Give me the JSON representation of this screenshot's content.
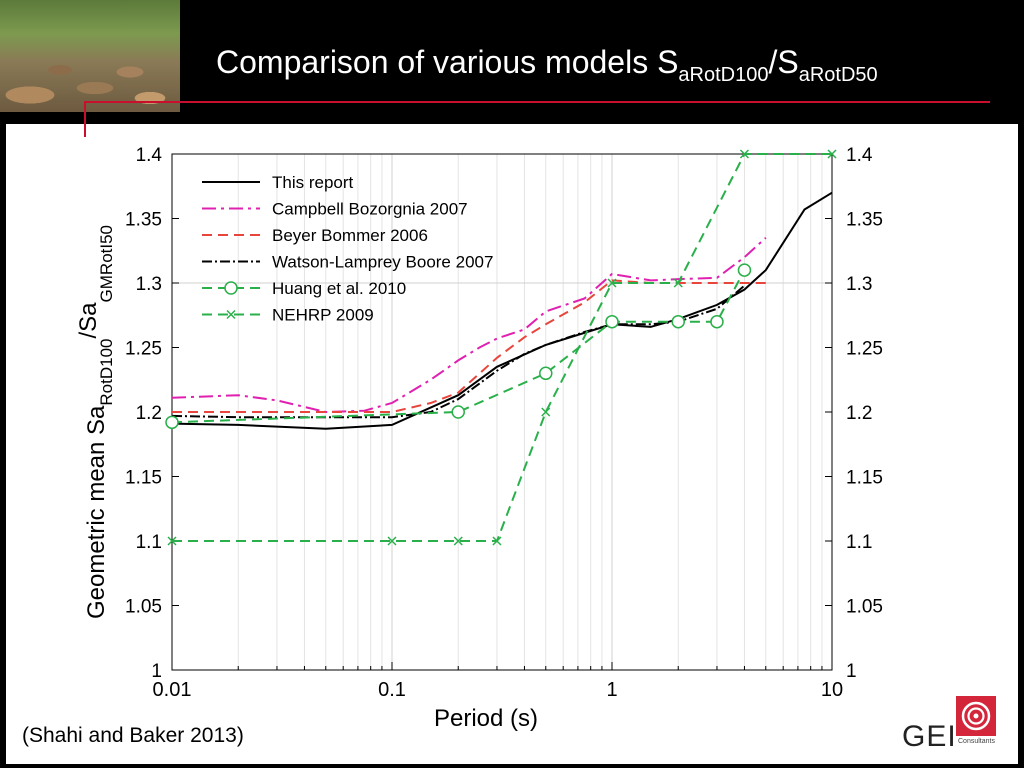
{
  "slide": {
    "title_main": "Comparison of various models S",
    "title_sub1": "aRotD100",
    "title_mid": "/S",
    "title_sub2": "aRotD50",
    "citation": "(Shahi and Baker 2013)",
    "logo_text": "GEI",
    "logo_sub": "Consultants"
  },
  "colors": {
    "accent_red": "#c8102e",
    "header_bg": "#000000"
  },
  "chart_data": {
    "type": "line",
    "xscale": "log",
    "xlim": [
      0.01,
      10
    ],
    "ylim": [
      1,
      1.4
    ],
    "xticks": [
      0.01,
      0.1,
      1,
      10
    ],
    "xticklabels": [
      "0.01",
      "0.1",
      "1",
      "10"
    ],
    "yticks": [
      1,
      1.05,
      1.1,
      1.15,
      1.2,
      1.25,
      1.3,
      1.35,
      1.4
    ],
    "yticklabels": [
      "1",
      "1.05",
      "1.1",
      "1.15",
      "1.2",
      "1.25",
      "1.3",
      "1.35",
      "1.4"
    ],
    "xlabel": "Period (s)",
    "ylabel_main": "Geometric mean Sa",
    "ylabel_sub1": "RotD100",
    "ylabel_mid": "/Sa",
    "ylabel_sub2": "GMRotI50",
    "grid": "vertical lines at decades and horizontal at 1.3",
    "legend_position": "top-left",
    "series": [
      {
        "name": "This report",
        "color": "#000000",
        "dash": "",
        "marker": "none",
        "x": [
          0.01,
          0.02,
          0.05,
          0.1,
          0.2,
          0.3,
          0.5,
          1,
          1.5,
          2,
          3,
          4,
          5,
          7.5,
          10
        ],
        "y": [
          1.191,
          1.19,
          1.187,
          1.19,
          1.213,
          1.235,
          1.252,
          1.268,
          1.266,
          1.272,
          1.283,
          1.295,
          1.31,
          1.357,
          1.37
        ]
      },
      {
        "name": "Campbell Bozorgnia 2007",
        "color": "#e020b0",
        "dash": "14,5,3,5",
        "marker": "none",
        "x": [
          0.01,
          0.02,
          0.03,
          0.05,
          0.075,
          0.1,
          0.15,
          0.2,
          0.25,
          0.3,
          0.4,
          0.5,
          0.75,
          1,
          1.5,
          2,
          3,
          4,
          5
        ],
        "y": [
          1.211,
          1.213,
          1.209,
          1.2,
          1.201,
          1.207,
          1.225,
          1.24,
          1.25,
          1.257,
          1.264,
          1.278,
          1.288,
          1.307,
          1.302,
          1.303,
          1.304,
          1.32,
          1.335
        ]
      },
      {
        "name": "Beyer Bommer 2006",
        "color": "#e8453c",
        "dash": "10,6",
        "marker": "none",
        "x": [
          0.01,
          0.02,
          0.05,
          0.1,
          0.15,
          0.2,
          0.3,
          0.4,
          0.5,
          0.75,
          1,
          1.5,
          2,
          3,
          4,
          5
        ],
        "y": [
          1.2,
          1.2,
          1.2,
          1.2,
          1.207,
          1.215,
          1.242,
          1.258,
          1.268,
          1.285,
          1.302,
          1.3,
          1.3,
          1.3,
          1.3,
          1.3
        ]
      },
      {
        "name": "Watson-Lamprey Boore 2007",
        "color": "#000000",
        "dash": "10,3,2,3",
        "marker": "none",
        "x": [
          0.01,
          0.02,
          0.05,
          0.1,
          0.15,
          0.2,
          0.3,
          0.4,
          0.5,
          0.75,
          1,
          1.5,
          2,
          3,
          4
        ],
        "y": [
          1.197,
          1.196,
          1.196,
          1.196,
          1.2,
          1.21,
          1.232,
          1.245,
          1.252,
          1.262,
          1.268,
          1.268,
          1.27,
          1.28,
          1.298
        ]
      },
      {
        "name": "Huang et al. 2010",
        "color": "#2ab04a",
        "dash": "10,6",
        "marker": "circle",
        "x": [
          0.01,
          0.2,
          0.5,
          1,
          2,
          3,
          4
        ],
        "y": [
          1.192,
          1.2,
          1.23,
          1.27,
          1.27,
          1.27,
          1.31
        ]
      },
      {
        "name": "NEHRP 2009",
        "color": "#2ab04a",
        "dash": "10,6",
        "marker": "x",
        "x": [
          0.01,
          0.1,
          0.2,
          0.3,
          0.5,
          1,
          2,
          4,
          10
        ],
        "y": [
          1.1,
          1.1,
          1.1,
          1.1,
          1.2,
          1.3,
          1.3,
          1.4,
          1.4
        ]
      }
    ]
  }
}
